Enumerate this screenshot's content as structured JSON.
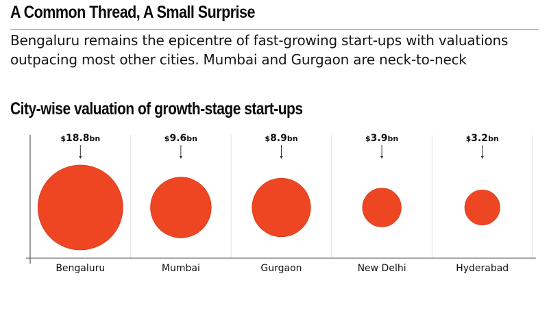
{
  "header": {
    "title": "A Common Thread, A Small Surprise",
    "subtitle": "Bengaluru remains the epicentre of fast-growing start-ups with valuations outpacing most other cities. Mumbai and Gurgaon are neck-to-neck"
  },
  "colors": {
    "bubble": "#EE4623",
    "bubble_stroke": "#D63A1A",
    "axis": "#888888",
    "divider": "#E2E2E2",
    "arrow": "#333333"
  },
  "chart_data": {
    "type": "bubble",
    "title": "City-wise valuation of growth-stage start-ups",
    "xlabel": "",
    "ylabel": "",
    "unit_prefix": "$",
    "unit_suffix": "bn",
    "grid": "vertical dividers between categories",
    "legend": "none",
    "categories": [
      "Bengaluru",
      "Mumbai",
      "Gurgaon",
      "New Delhi",
      "Hyderabad"
    ],
    "values": [
      18.8,
      9.6,
      8.9,
      3.9,
      3.2
    ],
    "value_labels": [
      "18.8",
      "9.6",
      "8.9",
      "3.9",
      "3.2"
    ]
  }
}
